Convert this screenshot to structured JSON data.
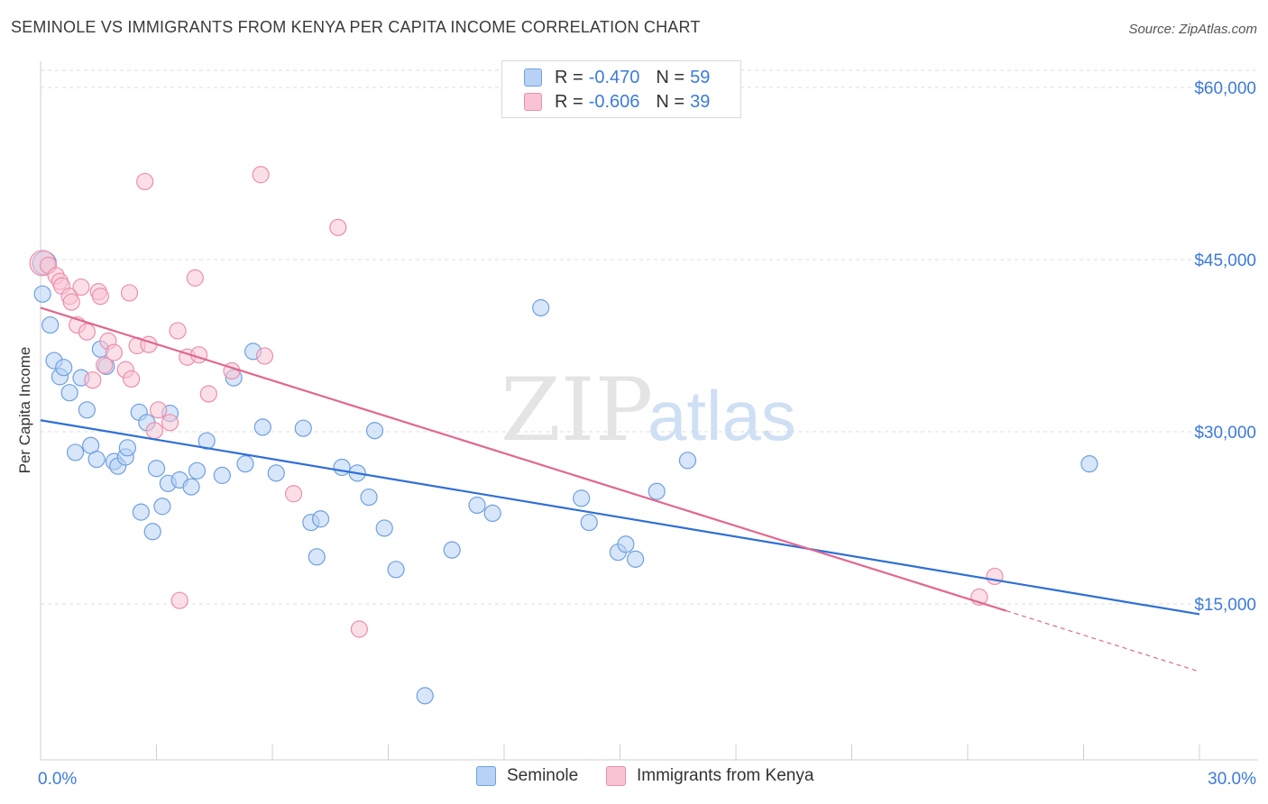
{
  "header": {
    "title": "SEMINOLE VS IMMIGRANTS FROM KENYA PER CAPITA INCOME CORRELATION CHART",
    "source": "Source: ZipAtlas.com"
  },
  "legend_top": {
    "rows": [
      {
        "r_label": "R =",
        "r_value": "-0.470",
        "n_label": "N =",
        "n_value": "59"
      },
      {
        "r_label": "R =",
        "r_value": "-0.606",
        "n_label": "N =",
        "n_value": "39"
      }
    ]
  },
  "legend_bottom": {
    "items": [
      {
        "label": "Seminole"
      },
      {
        "label": "Immigrants from Kenya"
      }
    ]
  },
  "colors": {
    "seminole_fill": "#b7d2f4",
    "seminole_stroke": "#6fa0e0",
    "seminole_line": "#2f6fd6",
    "kenya_fill": "#f8c4d3",
    "kenya_stroke": "#ec8fac",
    "kenya_line": "#e06890",
    "axis_label": "#3d7bd8",
    "grid": "#dddddd",
    "watermark": "#e3e3e3"
  },
  "watermark": {
    "zip": "ZIP",
    "atlas": "atlas"
  },
  "chart_data": {
    "type": "scatter",
    "title": "SEMINOLE VS IMMIGRANTS FROM KENYA PER CAPITA INCOME CORRELATION CHART",
    "xlabel": "",
    "ylabel": "Per Capita Income",
    "xlim": [
      0,
      30
    ],
    "ylim": [
      0,
      60000
    ],
    "x_tick_labels": [
      "0.0%",
      "30.0%"
    ],
    "y_ticks": [
      {
        "value": 15000,
        "label": "$15,000"
      },
      {
        "value": 30000,
        "label": "$30,000"
      },
      {
        "value": 45000,
        "label": "$45,000"
      },
      {
        "value": 60000,
        "label": "$60,000"
      }
    ],
    "grid": true,
    "series": [
      {
        "name": "Seminole",
        "r": -0.47,
        "n": 59,
        "trend": {
          "x0": 0,
          "y0": 31000,
          "x1": 30,
          "y1": 14100
        },
        "points": [
          [
            0.05,
            42000
          ],
          [
            0.25,
            39300
          ],
          [
            0.35,
            36200
          ],
          [
            0.5,
            34800
          ],
          [
            0.6,
            35600
          ],
          [
            0.75,
            33400
          ],
          [
            0.9,
            28200
          ],
          [
            1.05,
            34700
          ],
          [
            1.2,
            31900
          ],
          [
            1.3,
            28800
          ],
          [
            1.45,
            27600
          ],
          [
            1.55,
            37200
          ],
          [
            1.7,
            35700
          ],
          [
            1.9,
            27400
          ],
          [
            2.0,
            27000
          ],
          [
            2.2,
            27800
          ],
          [
            2.25,
            28600
          ],
          [
            2.55,
            31700
          ],
          [
            2.6,
            23000
          ],
          [
            2.75,
            30800
          ],
          [
            2.9,
            21300
          ],
          [
            3.0,
            26800
          ],
          [
            3.15,
            23500
          ],
          [
            3.3,
            25500
          ],
          [
            3.35,
            31600
          ],
          [
            3.6,
            25800
          ],
          [
            3.9,
            25200
          ],
          [
            4.05,
            26600
          ],
          [
            4.3,
            29200
          ],
          [
            4.7,
            26200
          ],
          [
            5.0,
            34700
          ],
          [
            5.3,
            27200
          ],
          [
            5.5,
            37000
          ],
          [
            5.75,
            30400
          ],
          [
            6.1,
            26400
          ],
          [
            6.8,
            30300
          ],
          [
            7.0,
            22100
          ],
          [
            7.15,
            19100
          ],
          [
            7.25,
            22400
          ],
          [
            7.8,
            26900
          ],
          [
            8.2,
            26400
          ],
          [
            8.5,
            24300
          ],
          [
            8.65,
            30100
          ],
          [
            8.9,
            21600
          ],
          [
            9.2,
            18000
          ],
          [
            9.95,
            7000
          ],
          [
            10.65,
            19700
          ],
          [
            11.3,
            23600
          ],
          [
            11.7,
            22900
          ],
          [
            12.95,
            40800
          ],
          [
            14.0,
            24200
          ],
          [
            14.2,
            22100
          ],
          [
            14.95,
            19500
          ],
          [
            15.15,
            20200
          ],
          [
            15.4,
            18900
          ],
          [
            15.95,
            24800
          ],
          [
            16.75,
            27500
          ],
          [
            27.15,
            27200
          ],
          [
            0.1,
            44700
          ]
        ]
      },
      {
        "name": "Immigrants from Kenya",
        "r": -0.606,
        "n": 39,
        "trend": {
          "x0": 0,
          "y0": 40800,
          "x1": 25.0,
          "y1": 14400
        },
        "trend_dashed_to": {
          "x": 30,
          "y": 9100
        },
        "points": [
          [
            0.05,
            44700
          ],
          [
            0.2,
            44500
          ],
          [
            0.4,
            43600
          ],
          [
            0.5,
            43100
          ],
          [
            0.55,
            42700
          ],
          [
            0.75,
            41800
          ],
          [
            0.8,
            41300
          ],
          [
            0.95,
            39300
          ],
          [
            1.05,
            42600
          ],
          [
            1.2,
            38700
          ],
          [
            1.35,
            34500
          ],
          [
            1.5,
            42200
          ],
          [
            1.55,
            41800
          ],
          [
            1.65,
            35800
          ],
          [
            1.75,
            37900
          ],
          [
            1.9,
            36900
          ],
          [
            2.2,
            35400
          ],
          [
            2.3,
            42100
          ],
          [
            2.35,
            34600
          ],
          [
            2.5,
            37500
          ],
          [
            2.7,
            51800
          ],
          [
            2.8,
            37600
          ],
          [
            2.95,
            30100
          ],
          [
            3.05,
            31900
          ],
          [
            3.35,
            30800
          ],
          [
            3.55,
            38800
          ],
          [
            3.6,
            15300
          ],
          [
            3.8,
            36500
          ],
          [
            4.0,
            43400
          ],
          [
            4.1,
            36700
          ],
          [
            4.35,
            33300
          ],
          [
            4.95,
            35300
          ],
          [
            5.7,
            52400
          ],
          [
            5.8,
            36600
          ],
          [
            6.55,
            24600
          ],
          [
            7.7,
            47800
          ],
          [
            8.25,
            12800
          ],
          [
            24.3,
            15600
          ],
          [
            24.7,
            17400
          ]
        ]
      }
    ]
  }
}
